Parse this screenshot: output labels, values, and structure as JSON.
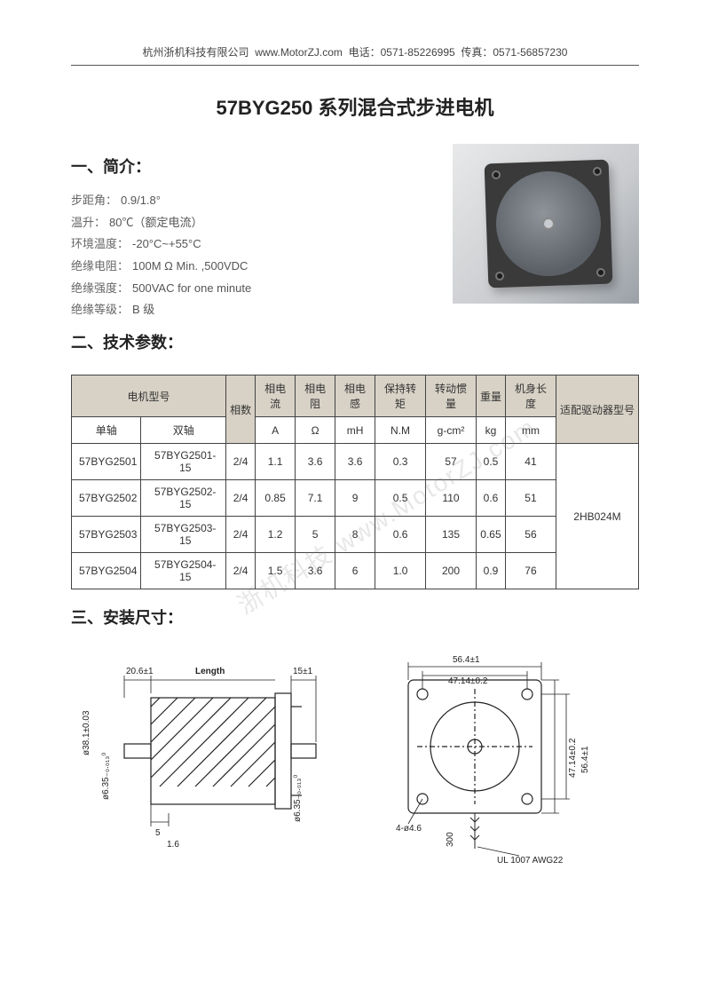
{
  "header": {
    "company": "杭州浙机科技有限公司",
    "website": "www.MotorZJ.com",
    "tel_label": "电话：",
    "tel": "0571-85226995",
    "fax_label": "传真：",
    "fax": "0571-56857230"
  },
  "title": "57BYG250 系列混合式步进电机",
  "sections": {
    "intro": "一、简介：",
    "params": "二、技术参数：",
    "dims": "三、安装尺寸："
  },
  "specs": [
    {
      "label": "步距角：",
      "value": "0.9/1.8°"
    },
    {
      "label": "温升：",
      "value": "80℃（额定电流）"
    },
    {
      "label": "环境温度：",
      "value": "-20°C~+55°C"
    },
    {
      "label": "绝缘电阻：",
      "value": "100M Ω Min. ,500VDC"
    },
    {
      "label": "绝缘强度：",
      "value": "500VAC for one minute"
    },
    {
      "label": "绝缘等级：",
      "value": "B 级"
    }
  ],
  "table": {
    "header_bg": "#d8d2c6",
    "border_color": "#444444",
    "font_size": 12,
    "columns_top": [
      "电机型号",
      "相数",
      "相电流",
      "相电阻",
      "相电感",
      "保持转矩",
      "转动惯量",
      "重量",
      "机身长度",
      "适配驱动器型号"
    ],
    "sub_model": {
      "single": "单轴",
      "dual": "双轴"
    },
    "units": [
      "",
      "A",
      "Ω",
      "mH",
      "N.M",
      "g-cm²",
      "kg",
      "mm"
    ],
    "rows": [
      {
        "single": "57BYG2501",
        "dual": "57BYG2501-15",
        "phase": "2/4",
        "current": "1.1",
        "res": "3.6",
        "ind": "3.6",
        "torque": "0.3",
        "inertia": "57",
        "weight": "0.5",
        "len": "41"
      },
      {
        "single": "57BYG2502",
        "dual": "57BYG2502-15",
        "phase": "2/4",
        "current": "0.85",
        "res": "7.1",
        "ind": "9",
        "torque": "0.5",
        "inertia": "110",
        "weight": "0.6",
        "len": "51"
      },
      {
        "single": "57BYG2503",
        "dual": "57BYG2503-15",
        "phase": "2/4",
        "current": "1.2",
        "res": "5",
        "ind": "8",
        "torque": "0.6",
        "inertia": "135",
        "weight": "0.65",
        "len": "56"
      },
      {
        "single": "57BYG2504",
        "dual": "57BYG2504-15",
        "phase": "2/4",
        "current": "1.5",
        "res": "3.6",
        "ind": "6",
        "torque": "1.0",
        "inertia": "200",
        "weight": "0.9",
        "len": "76"
      }
    ],
    "driver": "2HB024M"
  },
  "watermark": "浙机科技   www.MotorZJ.com",
  "drawing": {
    "side": {
      "shaft_offset": "20.6±1",
      "length_label": "Length",
      "front_len": "15±1",
      "flange_dia": "ø38.1±0.03",
      "shaft_dia": "ø6.35₋₀.₀₁₃⁰",
      "shaft_step": "5",
      "step2": "1.6",
      "rear_shaft": "ø6.35₋₀.₀₁₃⁰"
    },
    "front": {
      "outer": "56.4±1",
      "bolt": "47.14±0.2",
      "outer_v": "56.4±1",
      "bolt_v": "47.14±0.2",
      "hole": "4-ø4.6",
      "lead": "300",
      "wire": "UL 1007 AWG22"
    }
  }
}
